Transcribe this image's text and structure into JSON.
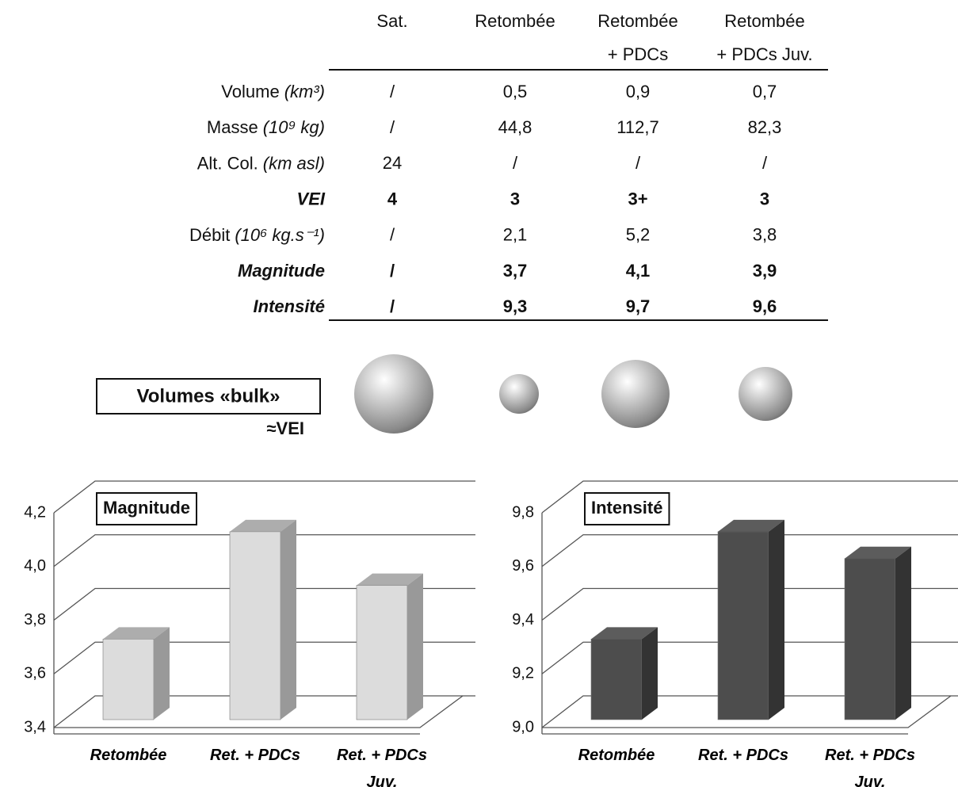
{
  "table": {
    "header": [
      [
        "Sat."
      ],
      [
        "Retombée"
      ],
      [
        "Retombée",
        "+ PDCs"
      ],
      [
        "Retombée",
        "+ PDCs Juv."
      ]
    ],
    "rows": [
      {
        "label": "Volume",
        "unit": "(km³)",
        "cells": [
          "/",
          "0,5",
          "0,9",
          "0,7"
        ]
      },
      {
        "label": "Masse",
        "unit": "(10⁹ kg)",
        "cells": [
          "/",
          "44,8",
          "112,7",
          "82,3"
        ]
      },
      {
        "label": "Alt. Col.",
        "unit": "(km asl)",
        "cells": [
          "24",
          "/",
          "/",
          "/"
        ]
      },
      {
        "label": "VEI",
        "bold": true,
        "cells": [
          "4",
          "3",
          "3+",
          "3"
        ]
      },
      {
        "label": "Débit",
        "unit": "(10⁶ kg.s⁻¹)",
        "cells": [
          "/",
          "2,1",
          "5,2",
          "3,8"
        ]
      },
      {
        "label": "Magnitude",
        "bold": true,
        "cells": [
          "/",
          "3,7",
          "4,1",
          "3,9"
        ]
      },
      {
        "label": "Intensité",
        "bold": true,
        "cells": [
          "/",
          "9,3",
          "9,7",
          "9,6"
        ]
      }
    ]
  },
  "volumes_box": {
    "title": "Volumes «bulk»",
    "note": "≈VEI"
  },
  "chart_data": [
    {
      "type": "bar3d",
      "title": "Magnitude",
      "categories": [
        "Retombée",
        "Ret. + PDCs",
        "Ret. + PDCs Juv."
      ],
      "values": [
        3.7,
        4.1,
        3.9
      ],
      "color": "#dcdcdc",
      "side_color": "#999999",
      "ylim": [
        3.4,
        4.2
      ],
      "yticks": [
        {
          "value": 3.4,
          "label": "3,4"
        },
        {
          "value": 3.6,
          "label": "3,6"
        },
        {
          "value": 3.8,
          "label": "3,8"
        },
        {
          "value": 4.0,
          "label": "4,0"
        },
        {
          "value": 4.2,
          "label": "4,2"
        }
      ],
      "grid": true
    },
    {
      "type": "bar3d",
      "title": "Intensité",
      "categories": [
        "Retombée",
        "Ret. + PDCs",
        "Ret. + PDCs Juv."
      ],
      "values": [
        9.3,
        9.7,
        9.6
      ],
      "color": "#4d4d4d",
      "side_color": "#333333",
      "ylim": [
        9.0,
        9.8
      ],
      "yticks": [
        {
          "value": 9.0,
          "label": "9,0"
        },
        {
          "value": 9.2,
          "label": "9,2"
        },
        {
          "value": 9.4,
          "label": "9,4"
        },
        {
          "value": 9.6,
          "label": "9,6"
        },
        {
          "value": 9.8,
          "label": "9,8"
        }
      ],
      "grid": true
    }
  ]
}
